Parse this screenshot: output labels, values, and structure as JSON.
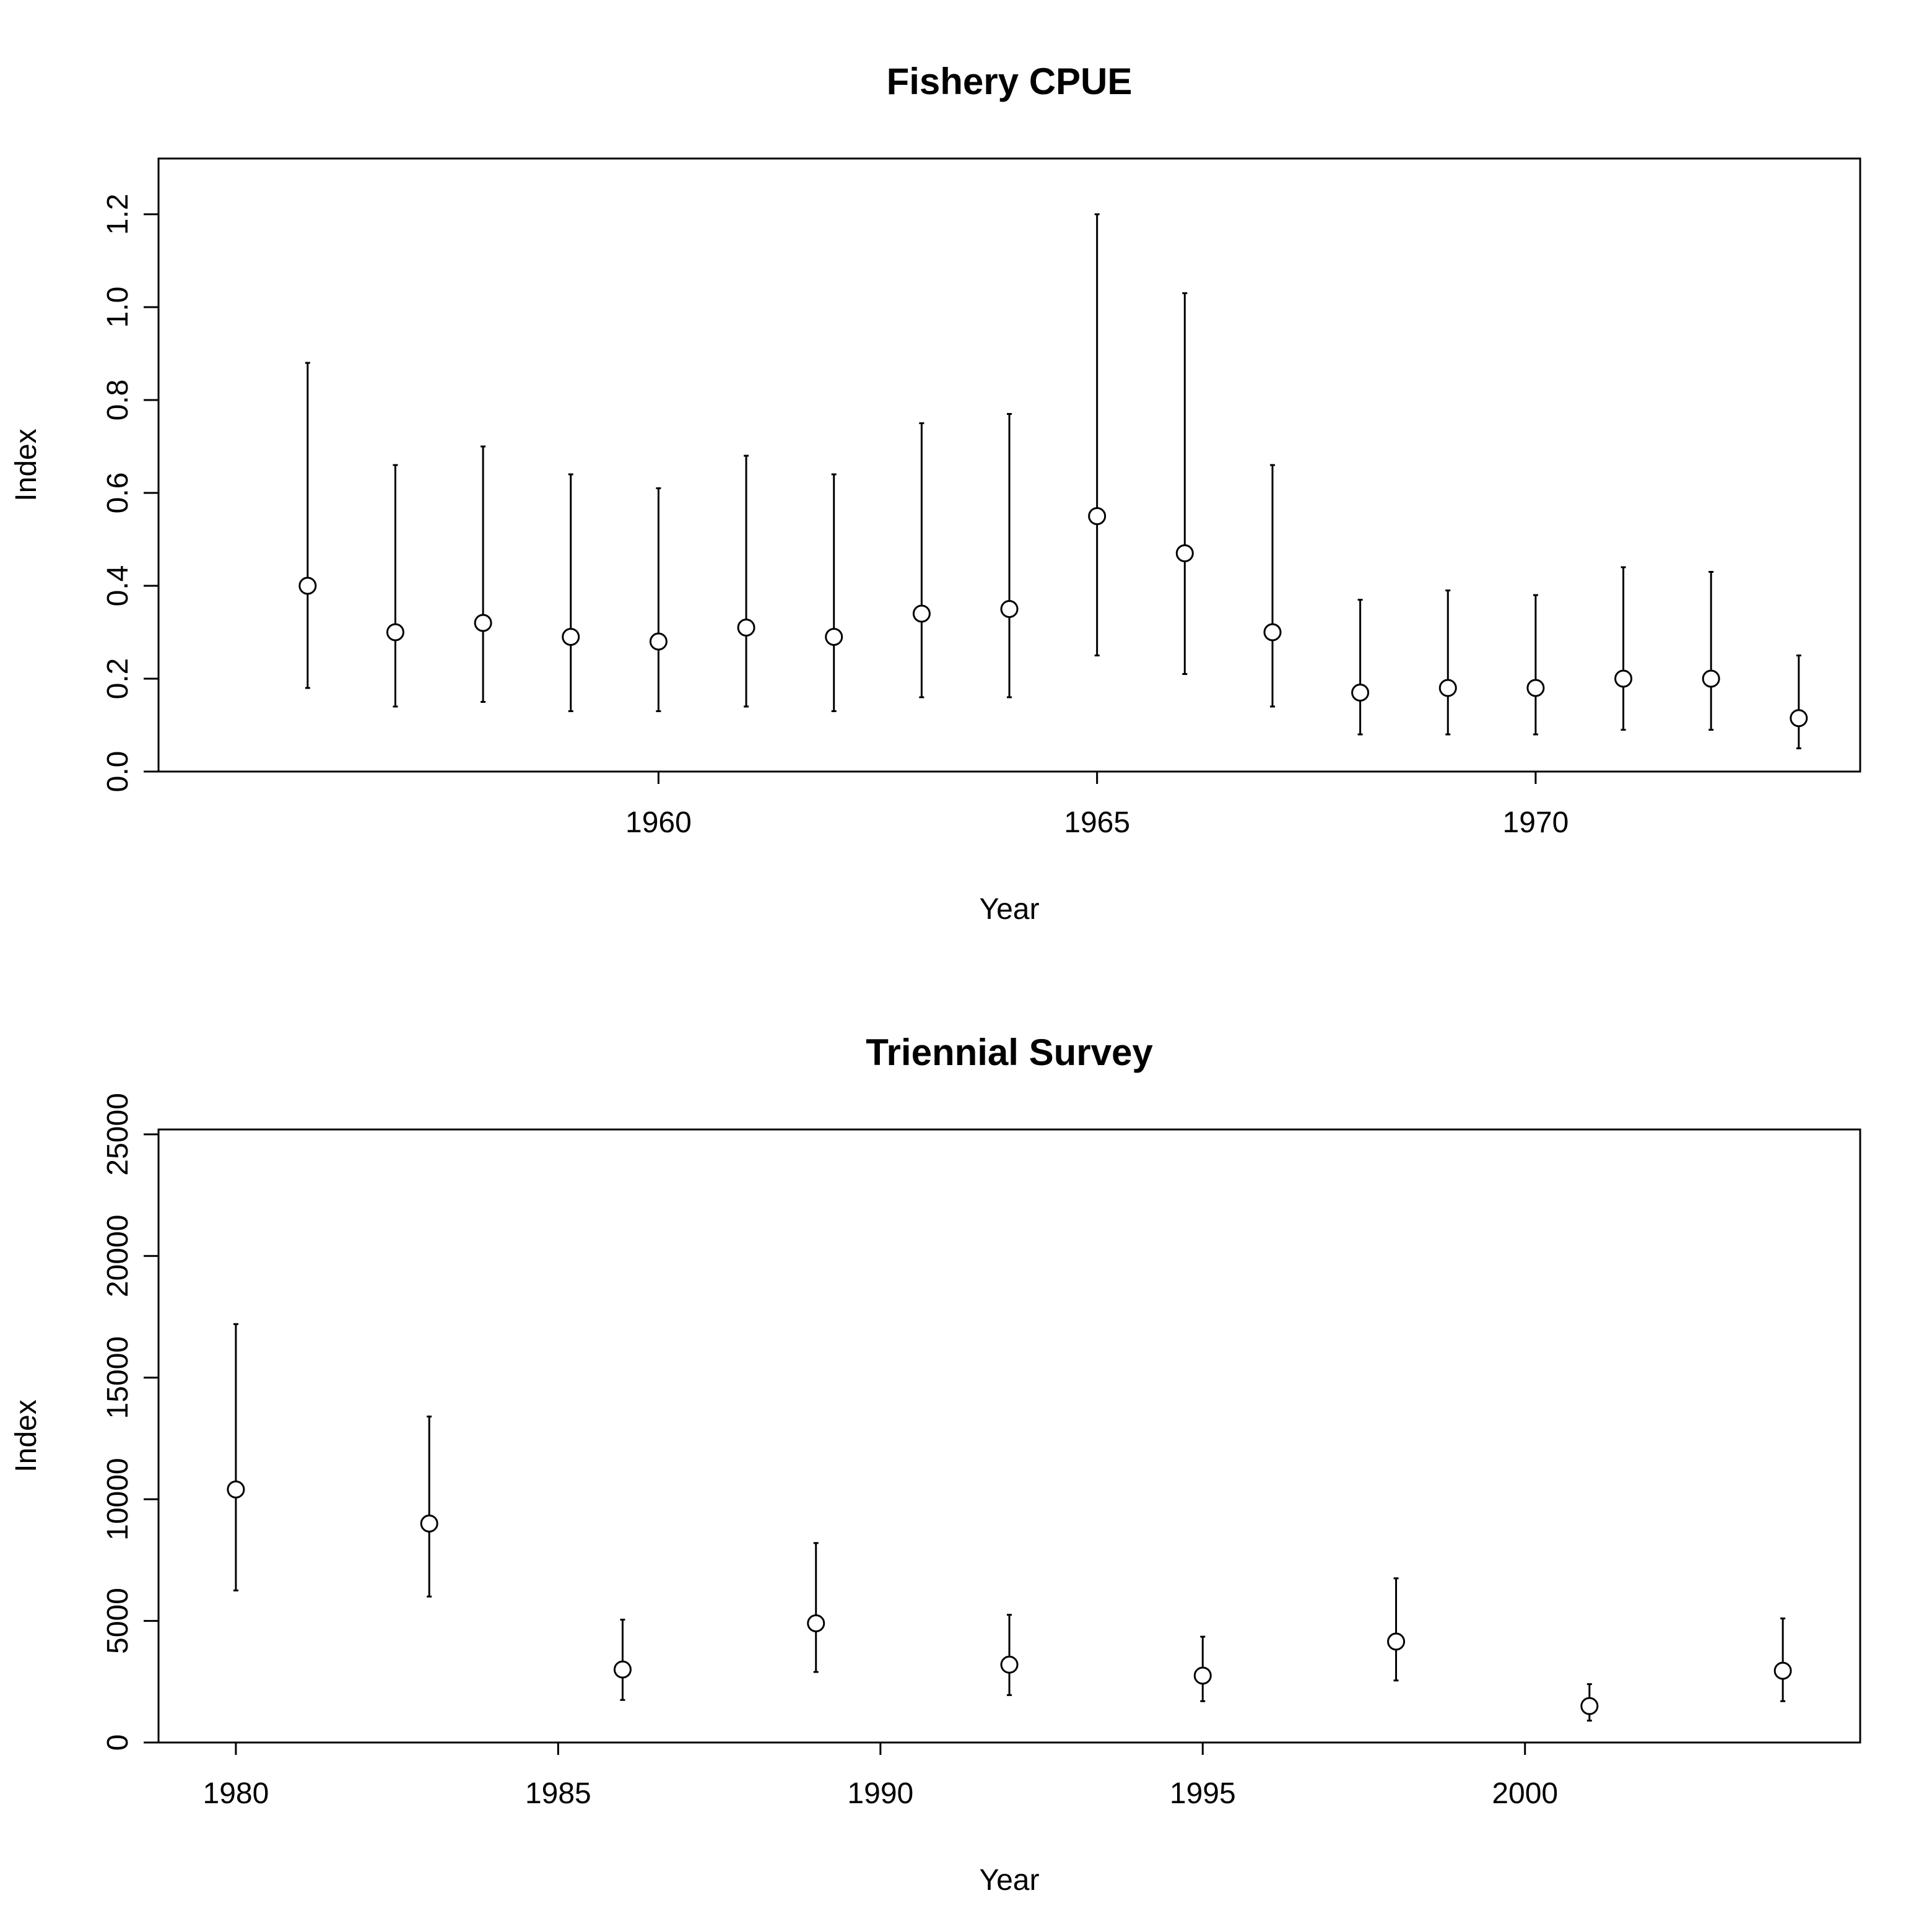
{
  "chart_data": [
    {
      "type": "scatter",
      "title": "Fishery CPUE",
      "xlabel": "Year",
      "ylabel": "Index",
      "xlim": [
        1954.3,
        1973.7
      ],
      "ylim": [
        0,
        1.32
      ],
      "xticks": [
        1960,
        1965,
        1970
      ],
      "yticks": [
        0.0,
        0.2,
        0.4,
        0.6,
        0.8,
        1.0,
        1.2
      ],
      "ytick_labels": [
        "0.0",
        "0.2",
        "0.4",
        "0.6",
        "0.8",
        "1.0",
        "1.2"
      ],
      "grid": false,
      "points": [
        {
          "x": 1956,
          "y": 0.4,
          "lo": 0.18,
          "hi": 0.88
        },
        {
          "x": 1957,
          "y": 0.3,
          "lo": 0.14,
          "hi": 0.66
        },
        {
          "x": 1958,
          "y": 0.32,
          "lo": 0.15,
          "hi": 0.7
        },
        {
          "x": 1959,
          "y": 0.29,
          "lo": 0.13,
          "hi": 0.64
        },
        {
          "x": 1960,
          "y": 0.28,
          "lo": 0.13,
          "hi": 0.61
        },
        {
          "x": 1961,
          "y": 0.31,
          "lo": 0.14,
          "hi": 0.68
        },
        {
          "x": 1962,
          "y": 0.29,
          "lo": 0.13,
          "hi": 0.64
        },
        {
          "x": 1963,
          "y": 0.34,
          "lo": 0.16,
          "hi": 0.75
        },
        {
          "x": 1964,
          "y": 0.35,
          "lo": 0.16,
          "hi": 0.77
        },
        {
          "x": 1965,
          "y": 0.55,
          "lo": 0.25,
          "hi": 1.2
        },
        {
          "x": 1966,
          "y": 0.47,
          "lo": 0.21,
          "hi": 1.03
        },
        {
          "x": 1967,
          "y": 0.3,
          "lo": 0.14,
          "hi": 0.66
        },
        {
          "x": 1968,
          "y": 0.17,
          "lo": 0.08,
          "hi": 0.37
        },
        {
          "x": 1969,
          "y": 0.18,
          "lo": 0.08,
          "hi": 0.39
        },
        {
          "x": 1970,
          "y": 0.18,
          "lo": 0.08,
          "hi": 0.38
        },
        {
          "x": 1971,
          "y": 0.2,
          "lo": 0.09,
          "hi": 0.44
        },
        {
          "x": 1972,
          "y": 0.2,
          "lo": 0.09,
          "hi": 0.43
        },
        {
          "x": 1973,
          "y": 0.115,
          "lo": 0.05,
          "hi": 0.25
        }
      ]
    },
    {
      "type": "scatter",
      "title": "Triennial Survey",
      "xlabel": "Year",
      "ylabel": "Index",
      "xlim": [
        1978.8,
        2005.2
      ],
      "ylim": [
        0,
        25200
      ],
      "xticks": [
        1980,
        1985,
        1990,
        1995,
        2000
      ],
      "yticks": [
        0,
        5000,
        10000,
        15000,
        20000,
        25000
      ],
      "ytick_labels": [
        "0",
        "5000",
        "10000",
        "15000",
        "20000",
        "25000"
      ],
      "grid": false,
      "points": [
        {
          "x": 1980,
          "y": 10400,
          "lo": 6250,
          "hi": 17200
        },
        {
          "x": 1983,
          "y": 9000,
          "lo": 6000,
          "hi": 13400
        },
        {
          "x": 1986,
          "y": 3000,
          "lo": 1750,
          "hi": 5050
        },
        {
          "x": 1989,
          "y": 4900,
          "lo": 2900,
          "hi": 8200
        },
        {
          "x": 1992,
          "y": 3200,
          "lo": 1950,
          "hi": 5250
        },
        {
          "x": 1995,
          "y": 2750,
          "lo": 1700,
          "hi": 4350
        },
        {
          "x": 1998,
          "y": 4150,
          "lo": 2550,
          "hi": 6750
        },
        {
          "x": 2001,
          "y": 1500,
          "lo": 900,
          "hi": 2400
        },
        {
          "x": 2004,
          "y": 2950,
          "lo": 1700,
          "hi": 5100
        }
      ]
    }
  ]
}
